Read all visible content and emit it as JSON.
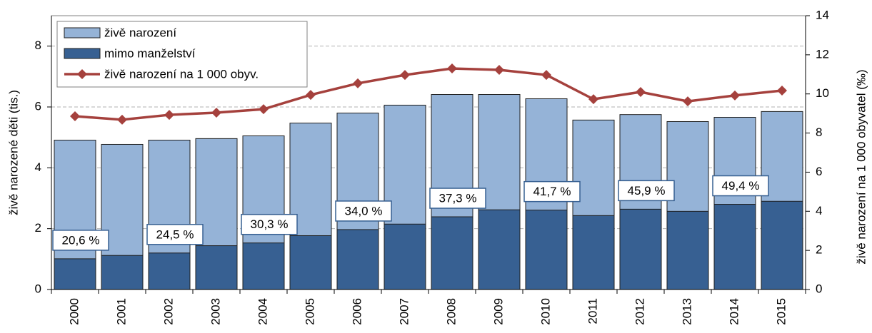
{
  "chart_data": {
    "type": "bar-line",
    "categories": [
      "2000",
      "2001",
      "2002",
      "2003",
      "2004",
      "2005",
      "2006",
      "2007",
      "2008",
      "2009",
      "2010",
      "2011",
      "2012",
      "2013",
      "2014",
      "2015"
    ],
    "ylabel": "živě narozené děti (tis.)",
    "y2label": "živě narození na 1 000 obyvatel  (‰)",
    "ylim": [
      0,
      9
    ],
    "yticks": [
      0,
      2,
      4,
      6,
      8
    ],
    "y2lim": [
      0,
      14
    ],
    "y2ticks": [
      0,
      2,
      4,
      6,
      8,
      10,
      12,
      14
    ],
    "grid": true,
    "legend": "upper left",
    "series": [
      {
        "name": "živě narození",
        "type": "bar",
        "color": "#95b3d7",
        "values": [
          4.91,
          4.77,
          4.91,
          4.96,
          5.05,
          5.47,
          5.8,
          6.06,
          6.41,
          6.41,
          6.27,
          5.57,
          5.75,
          5.52,
          5.66,
          5.85
        ]
      },
      {
        "name": "mimo manželství",
        "type": "bar",
        "color": "#376092",
        "values": [
          1.01,
          1.12,
          1.2,
          1.44,
          1.53,
          1.77,
          1.97,
          2.15,
          2.39,
          2.62,
          2.61,
          2.43,
          2.64,
          2.57,
          2.8,
          2.9
        ]
      },
      {
        "name": "živě narození na 1 000 obyv.",
        "type": "line",
        "axis": "y2",
        "color": "#a5413d",
        "values": [
          8.86,
          8.68,
          8.93,
          9.04,
          9.22,
          9.95,
          10.54,
          10.97,
          11.3,
          11.23,
          10.97,
          9.73,
          10.1,
          9.62,
          9.92,
          10.17
        ]
      }
    ],
    "annotations": [
      {
        "x": "2000",
        "text": "20,6 %"
      },
      {
        "x": "2002",
        "text": "24,5 %"
      },
      {
        "x": "2004",
        "text": "30,3 %"
      },
      {
        "x": "2006",
        "text": "34,0 %"
      },
      {
        "x": "2008",
        "text": "37,3 %"
      },
      {
        "x": "2010",
        "text": "41,7 %"
      },
      {
        "x": "2012",
        "text": "45,9 %"
      },
      {
        "x": "2014",
        "text": "49,4 %"
      }
    ]
  }
}
